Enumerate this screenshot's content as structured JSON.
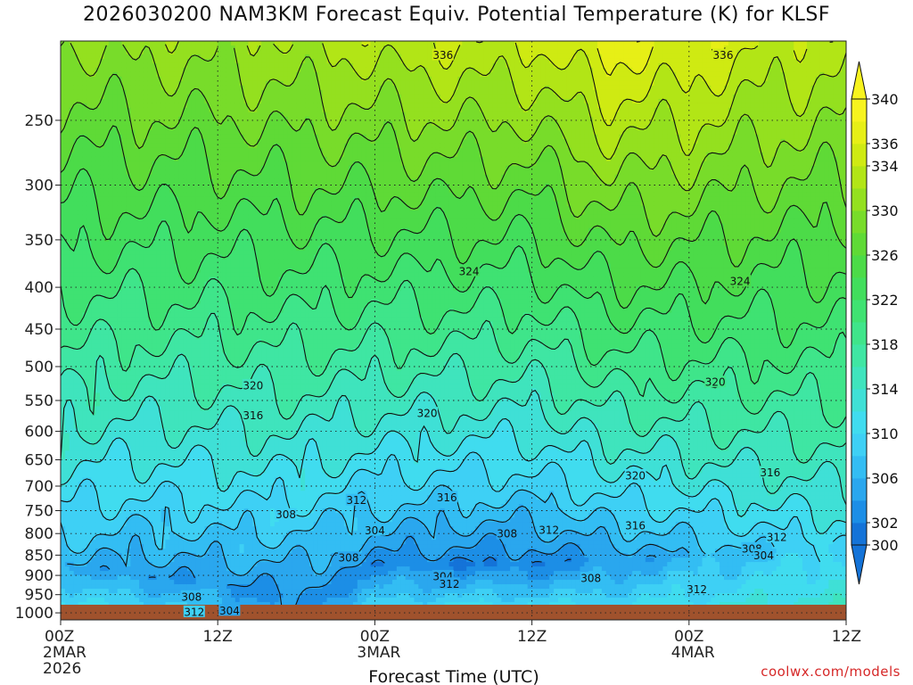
{
  "chart_data": {
    "type": "heatmap",
    "title": "2026030200 NAM3KM Forecast Equiv. Potential Temperature (K) for KLSF",
    "xlabel": "Forecast Time (UTC)",
    "ylabel": "",
    "x_range_hours": [
      0,
      60
    ],
    "x_ticks": [
      {
        "hour": 0,
        "label": "00Z",
        "sub": "2MAR",
        "sub2": "2026"
      },
      {
        "hour": 12,
        "label": "12Z",
        "sub": "",
        "sub2": ""
      },
      {
        "hour": 24,
        "label": "00Z",
        "sub": "3MAR",
        "sub2": ""
      },
      {
        "hour": 36,
        "label": "12Z",
        "sub": "",
        "sub2": ""
      },
      {
        "hour": 48,
        "label": "00Z",
        "sub": "4MAR",
        "sub2": ""
      },
      {
        "hour": 60,
        "label": "12Z",
        "sub": "",
        "sub2": ""
      }
    ],
    "y_scale": "log-pressure",
    "y_range_hPa": [
      1020,
      200
    ],
    "y_ticks": [
      250,
      300,
      350,
      400,
      450,
      500,
      550,
      600,
      650,
      700,
      750,
      800,
      850,
      900,
      950,
      1000
    ],
    "grid": true,
    "colorbar": {
      "placement": "right",
      "levels": [
        300,
        302,
        304,
        306,
        308,
        310,
        312,
        314,
        316,
        318,
        320,
        322,
        324,
        326,
        328,
        330,
        332,
        334,
        336,
        338,
        340
      ],
      "tick_labels": [
        300,
        302,
        306,
        310,
        314,
        318,
        322,
        326,
        330,
        334,
        336,
        340
      ],
      "colors": [
        "#1473d8",
        "#1c8ee6",
        "#2aa7ee",
        "#33bdf3",
        "#3ed0f5",
        "#40dcef",
        "#3fe0d6",
        "#3fe4bd",
        "#3fe6a3",
        "#3fe58a",
        "#3fe272",
        "#42de5c",
        "#4cdb48",
        "#5fda36",
        "#78dc2a",
        "#94e01f",
        "#b2e516",
        "#cfea12",
        "#e7ef16",
        "#f7f31e"
      ]
    },
    "profiles": [
      {
        "hour": 0,
        "surface_hPa": 1006,
        "theta_e_surface": 312,
        "theta_e_min": 306,
        "p_min_hPa": 870,
        "theta_e_top": 330
      },
      {
        "hour": 6,
        "surface_hPa": 1006,
        "theta_e_surface": 311,
        "theta_e_min": 304,
        "p_min_hPa": 900,
        "theta_e_top": 331
      },
      {
        "hour": 12,
        "surface_hPa": 1006,
        "theta_e_surface": 308,
        "theta_e_min": 304,
        "p_min_hPa": 920,
        "theta_e_top": 331
      },
      {
        "hour": 18,
        "surface_hPa": 1006,
        "theta_e_surface": 303,
        "theta_e_min": 303,
        "p_min_hPa": 960,
        "theta_e_top": 332
      },
      {
        "hour": 24,
        "surface_hPa": 1006,
        "theta_e_surface": 310,
        "theta_e_min": 303,
        "p_min_hPa": 870,
        "theta_e_top": 333
      },
      {
        "hour": 30,
        "surface_hPa": 1006,
        "theta_e_surface": 312,
        "theta_e_min": 302,
        "p_min_hPa": 870,
        "theta_e_top": 334
      },
      {
        "hour": 36,
        "surface_hPa": 1006,
        "theta_e_surface": 312,
        "theta_e_min": 302,
        "p_min_hPa": 870,
        "theta_e_top": 334
      },
      {
        "hour": 42,
        "surface_hPa": 1006,
        "theta_e_surface": 311,
        "theta_e_min": 304,
        "p_min_hPa": 860,
        "theta_e_top": 337
      },
      {
        "hour": 48,
        "surface_hPa": 1006,
        "theta_e_surface": 312,
        "theta_e_min": 306,
        "p_min_hPa": 850,
        "theta_e_top": 336
      },
      {
        "hour": 54,
        "surface_hPa": 1006,
        "theta_e_surface": 313,
        "theta_e_min": 308,
        "p_min_hPa": 840,
        "theta_e_top": 334
      },
      {
        "hour": 60,
        "surface_hPa": 1006,
        "theta_e_surface": 314,
        "theta_e_min": 310,
        "p_min_hPa": 820,
        "theta_e_top": 333
      }
    ],
    "contour_levels": [
      300,
      302,
      304,
      306,
      308,
      310,
      312,
      314,
      316,
      318,
      320,
      322,
      324,
      326,
      328,
      330,
      332,
      334,
      336,
      338,
      340
    ],
    "annotations": [
      {
        "text": "336",
        "hour": 29.2,
        "p_hPa": 208
      },
      {
        "text": "336",
        "hour": 50.6,
        "p_hPa": 208
      },
      {
        "text": "324",
        "hour": 31.2,
        "p_hPa": 382
      },
      {
        "text": "324",
        "hour": 51.9,
        "p_hPa": 393
      },
      {
        "text": "320",
        "hour": 14.7,
        "p_hPa": 527
      },
      {
        "text": "320",
        "hour": 50.0,
        "p_hPa": 522
      },
      {
        "text": "320",
        "hour": 28.0,
        "p_hPa": 570
      },
      {
        "text": "316",
        "hour": 14.7,
        "p_hPa": 573
      },
      {
        "text": "316",
        "hour": 54.2,
        "p_hPa": 673
      },
      {
        "text": "320",
        "hour": 43.9,
        "p_hPa": 679
      },
      {
        "text": "316",
        "hour": 29.5,
        "p_hPa": 722
      },
      {
        "text": "312",
        "hour": 22.6,
        "p_hPa": 728
      },
      {
        "text": "308",
        "hour": 17.2,
        "p_hPa": 758
      },
      {
        "text": "316",
        "hour": 43.9,
        "p_hPa": 782
      },
      {
        "text": "304",
        "hour": 24.0,
        "p_hPa": 793
      },
      {
        "text": "308",
        "hour": 34.1,
        "p_hPa": 800
      },
      {
        "text": "312",
        "hour": 37.3,
        "p_hPa": 792
      },
      {
        "text": "312",
        "hour": 54.7,
        "p_hPa": 808
      },
      {
        "text": "308",
        "hour": 52.8,
        "p_hPa": 834
      },
      {
        "text": "304",
        "hour": 53.7,
        "p_hPa": 850
      },
      {
        "text": "308",
        "hour": 22.0,
        "p_hPa": 856
      },
      {
        "text": "304",
        "hour": 29.2,
        "p_hPa": 902
      },
      {
        "text": "312",
        "hour": 29.7,
        "p_hPa": 921
      },
      {
        "text": "308",
        "hour": 40.5,
        "p_hPa": 907
      },
      {
        "text": "312",
        "hour": 48.6,
        "p_hPa": 935
      },
      {
        "text": "308",
        "hour": 10.0,
        "p_hPa": 955
      },
      {
        "text": "312",
        "hour": 10.2,
        "p_hPa": 997
      },
      {
        "text": "304",
        "hour": 12.9,
        "p_hPa": 993
      }
    ]
  },
  "credit": "coolwx.com/models"
}
